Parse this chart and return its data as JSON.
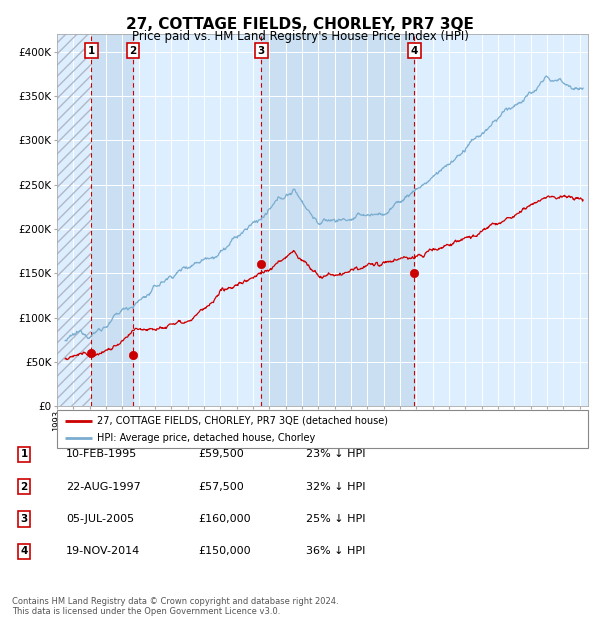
{
  "title": "27, COTTAGE FIELDS, CHORLEY, PR7 3QE",
  "subtitle": "Price paid vs. HM Land Registry's House Price Index (HPI)",
  "title_fontsize": 11,
  "subtitle_fontsize": 8.5,
  "ylabel_ticks": [
    "£0",
    "£50K",
    "£100K",
    "£150K",
    "£200K",
    "£250K",
    "£300K",
    "£350K",
    "£400K"
  ],
  "ytick_values": [
    0,
    50000,
    100000,
    150000,
    200000,
    250000,
    300000,
    350000,
    400000
  ],
  "ylim": [
    0,
    420000
  ],
  "xlim_start": 1993.0,
  "xlim_end": 2025.5,
  "background_chart": "#ddeeff",
  "red_color": "#cc0000",
  "blue_color": "#7aadcf",
  "vline_color": "#cc0000",
  "transactions": [
    {
      "num": 1,
      "date_str": "10-FEB-1995",
      "year": 1995.11,
      "price": 59500
    },
    {
      "num": 2,
      "date_str": "22-AUG-1997",
      "year": 1997.64,
      "price": 57500
    },
    {
      "num": 3,
      "date_str": "05-JUL-2005",
      "year": 2005.51,
      "price": 160000
    },
    {
      "num": 4,
      "date_str": "19-NOV-2014",
      "year": 2014.88,
      "price": 150000
    }
  ],
  "legend_line1": "27, COTTAGE FIELDS, CHORLEY, PR7 3QE (detached house)",
  "legend_line2": "HPI: Average price, detached house, Chorley",
  "footer_line1": "Contains HM Land Registry data © Crown copyright and database right 2024.",
  "footer_line2": "This data is licensed under the Open Government Licence v3.0.",
  "table_rows": [
    [
      "1",
      "10-FEB-1995",
      "£59,500",
      "23% ↓ HPI"
    ],
    [
      "2",
      "22-AUG-1997",
      "£57,500",
      "32% ↓ HPI"
    ],
    [
      "3",
      "05-JUL-2005",
      "£160,000",
      "25% ↓ HPI"
    ],
    [
      "4",
      "19-NOV-2014",
      "£150,000",
      "36% ↓ HPI"
    ]
  ]
}
